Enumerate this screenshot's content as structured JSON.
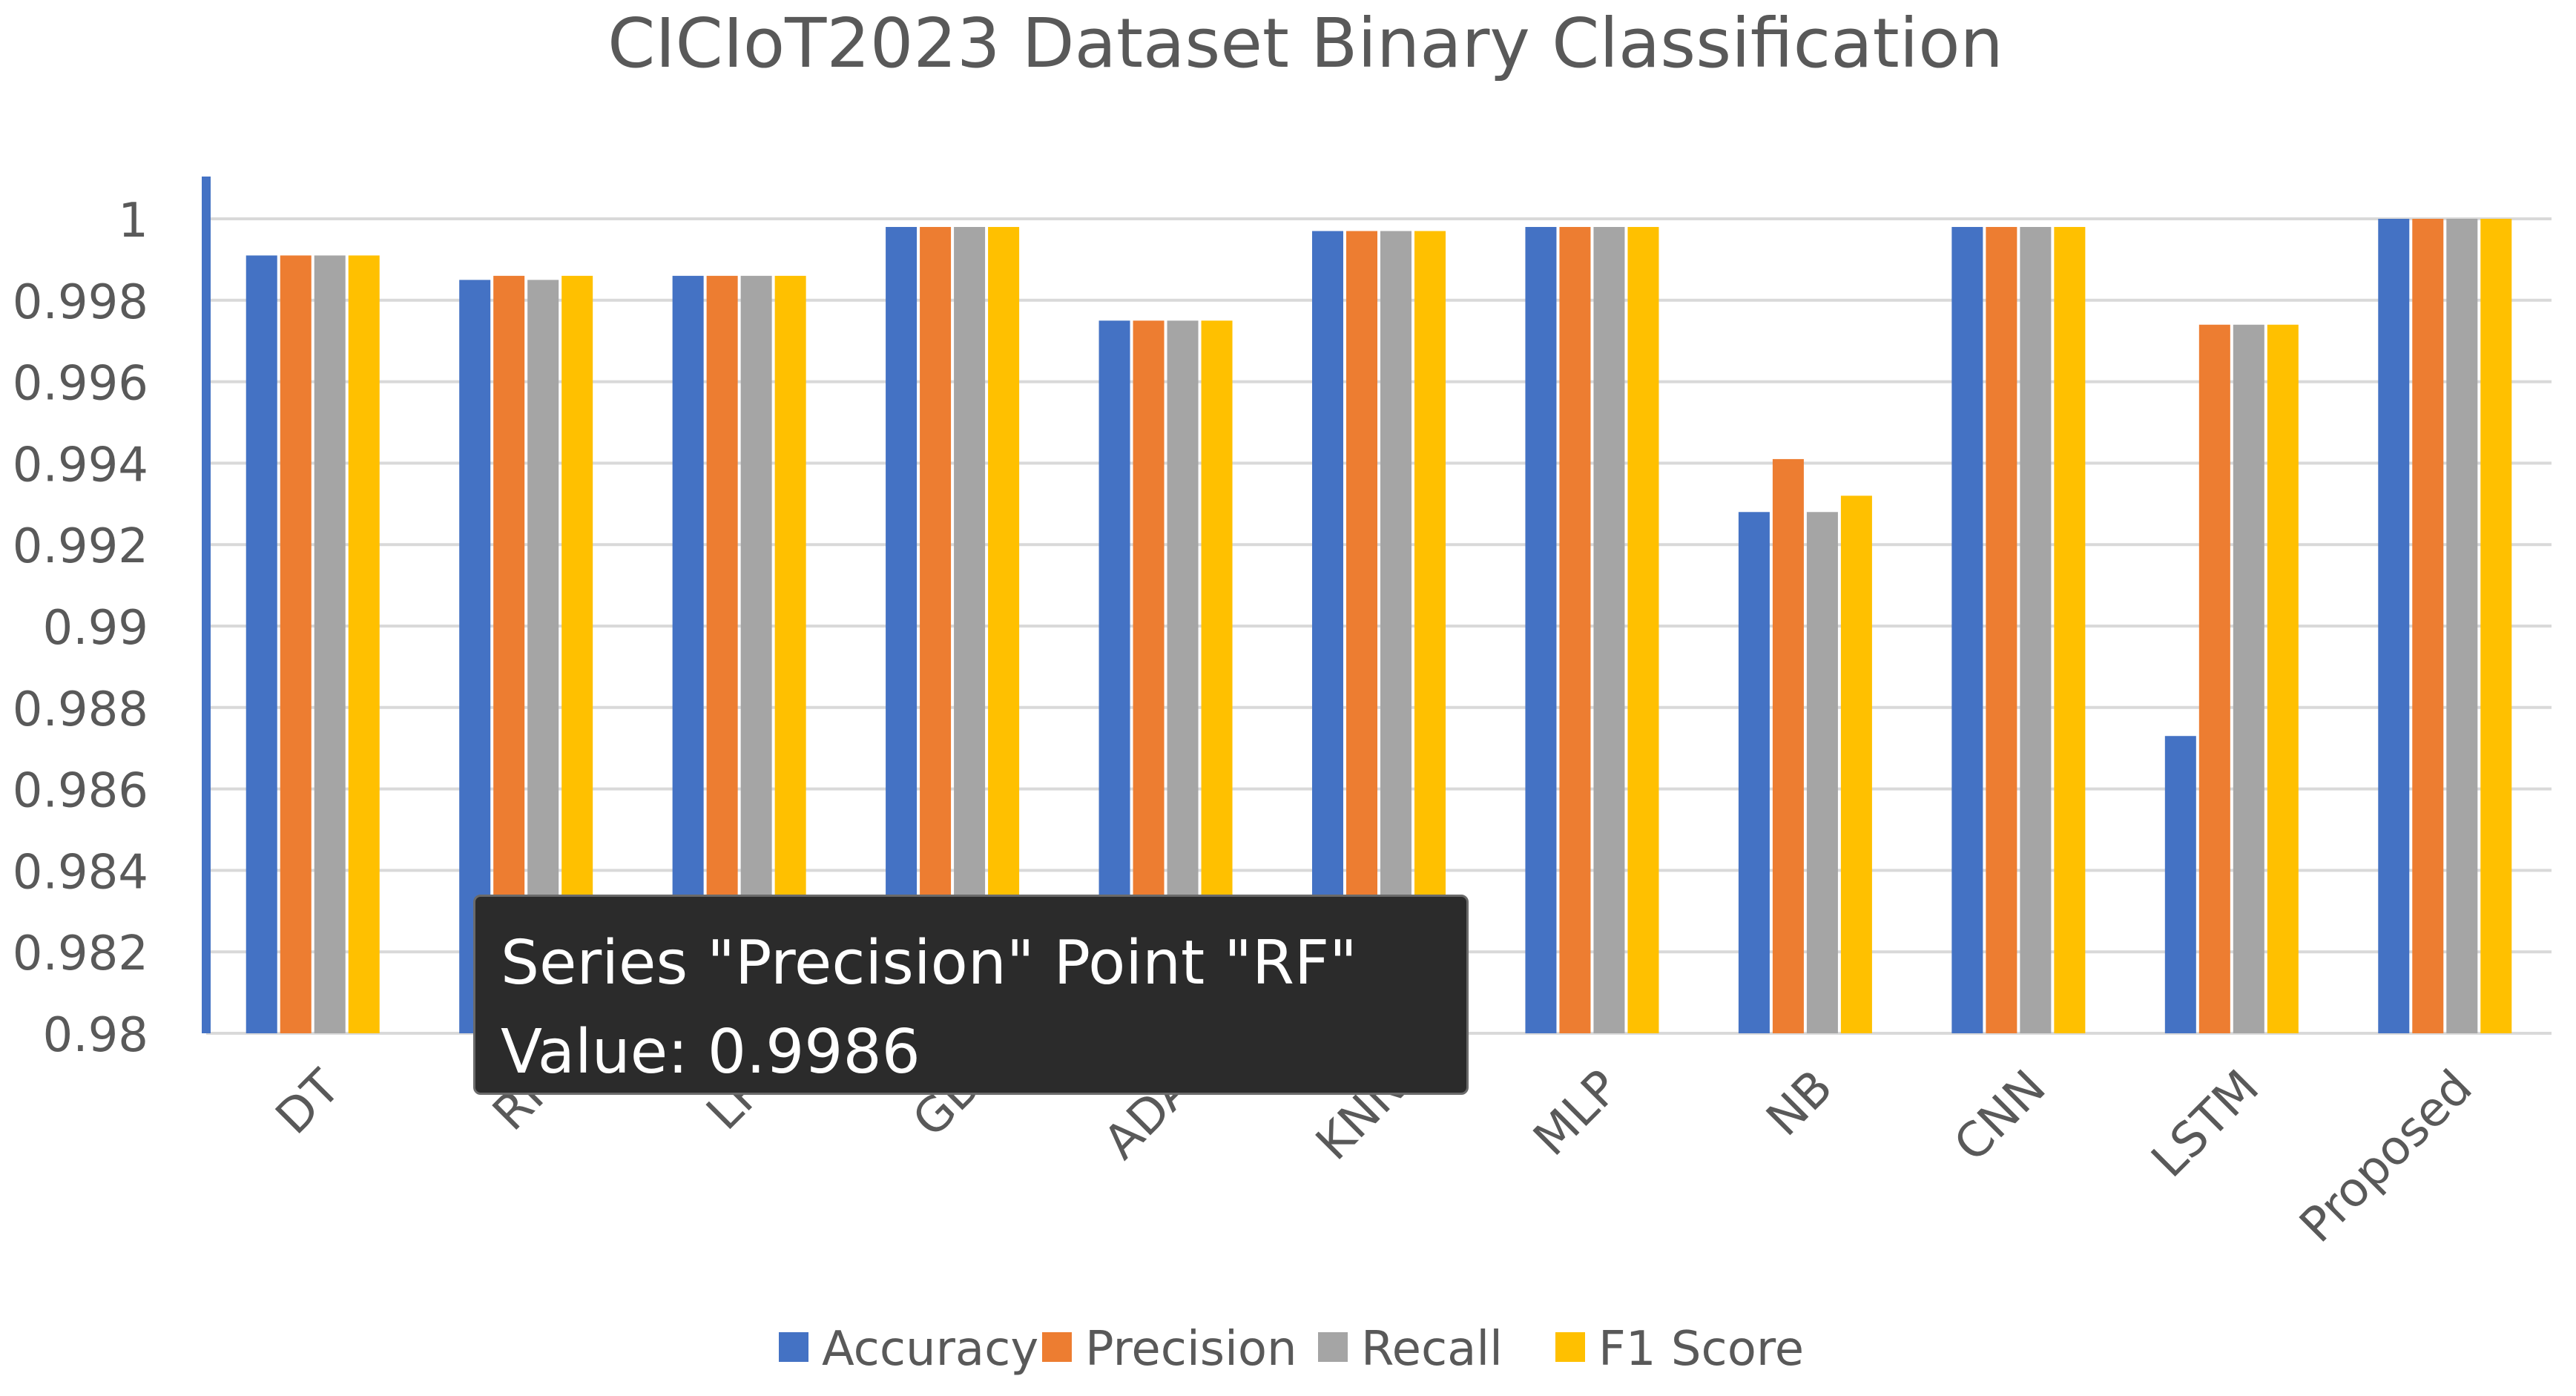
{
  "chart_data": {
    "type": "bar",
    "title": "CICIoT2023 Dataset Binary Classification",
    "xlabel": "",
    "ylabel": "",
    "ylim": [
      0.98,
      1.0
    ],
    "yticks": [
      "0.98",
      "0.982",
      "0.984",
      "0.986",
      "0.988",
      "0.99",
      "0.992",
      "0.994",
      "0.996",
      "0.998",
      "1"
    ],
    "categories": [
      "DT",
      "RF",
      "LR",
      "GB",
      "ADA",
      "KNN",
      "MLP",
      "NB",
      "CNN",
      "LSTM",
      "Proposed"
    ],
    "series": [
      {
        "name": "Accuracy",
        "color": "#4472c4",
        "values": [
          0.9991,
          0.9985,
          0.9986,
          0.9998,
          0.9975,
          0.9997,
          0.9998,
          0.9928,
          0.9998,
          0.9873,
          1.0
        ]
      },
      {
        "name": "Precision",
        "color": "#ed7d31",
        "values": [
          0.9991,
          0.9986,
          0.9986,
          0.9998,
          0.9975,
          0.9997,
          0.9998,
          0.9941,
          0.9998,
          0.9974,
          1.0
        ]
      },
      {
        "name": "Recall",
        "color": "#a5a5a5",
        "values": [
          0.9991,
          0.9985,
          0.9986,
          0.9998,
          0.9975,
          0.9997,
          0.9998,
          0.9928,
          0.9998,
          0.9974,
          1.0
        ]
      },
      {
        "name": "F1 Score",
        "color": "#ffc000",
        "values": [
          0.9991,
          0.9986,
          0.9986,
          0.9998,
          0.9975,
          0.9997,
          0.9998,
          0.9932,
          0.9998,
          0.9974,
          1.0
        ]
      }
    ],
    "grid": true,
    "legend_position": "bottom"
  },
  "tooltip": {
    "line1": "Series \"Precision\" Point \"RF\"",
    "line2": "Value: 0.9986"
  }
}
